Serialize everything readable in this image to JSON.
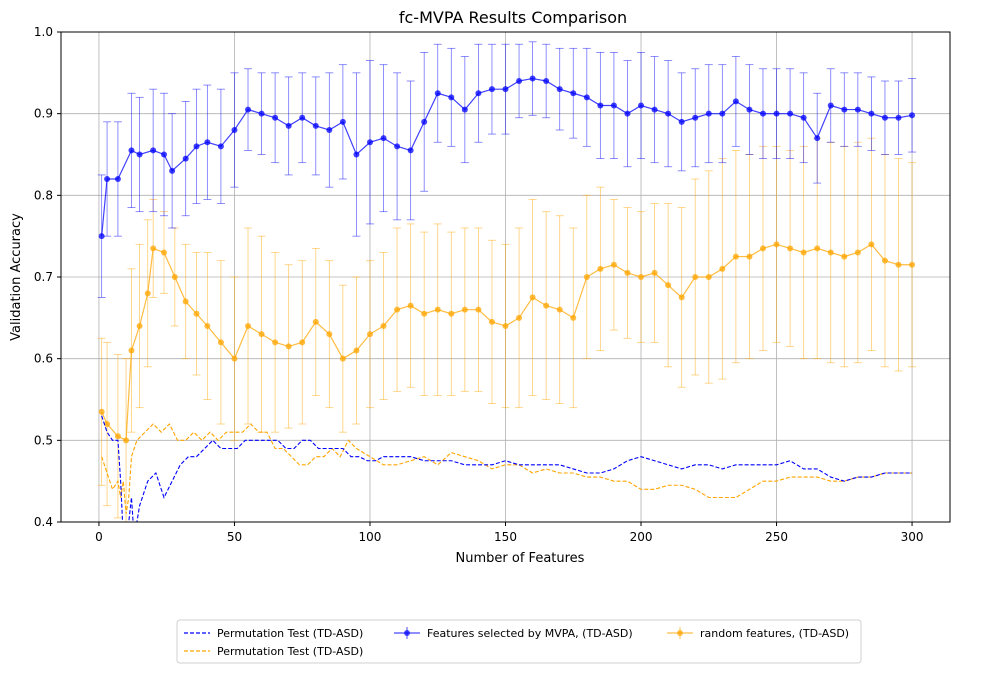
{
  "chart_data": {
    "type": "line",
    "title": "fc-MVPA Results Comparison",
    "xlabel": "Number of Features",
    "ylabel": "Validation Accuracy",
    "xlim": [
      -14,
      314
    ],
    "ylim": [
      0.4,
      1.0
    ],
    "xticks": [
      0,
      50,
      100,
      150,
      200,
      250,
      300
    ],
    "yticks": [
      0.4,
      0.5,
      0.6,
      0.7,
      0.8,
      0.9,
      1.0
    ],
    "ytick_labels": [
      "0.4",
      "0.5",
      "0.6",
      "0.7",
      "0.8",
      "0.9",
      "1.0"
    ],
    "grid": true,
    "legend_placement": "below-center",
    "colors": {
      "blue": "#0000ff",
      "orange": "#ffa500"
    },
    "series": [
      {
        "name": "Features selected by MVPA, (TD-ASD)",
        "kind": "errorbar",
        "color": "#0000ff",
        "x": [
          1,
          3,
          7,
          12,
          15,
          20,
          24,
          27,
          32,
          36,
          40,
          45,
          50,
          55,
          60,
          65,
          70,
          75,
          80,
          85,
          90,
          95,
          100,
          105,
          110,
          115,
          120,
          125,
          130,
          135,
          140,
          145,
          150,
          155,
          160,
          165,
          170,
          175,
          180,
          185,
          190,
          195,
          200,
          205,
          210,
          215,
          220,
          225,
          230,
          235,
          240,
          245,
          250,
          255,
          260,
          265,
          270,
          275,
          280,
          285,
          290,
          295,
          300
        ],
        "y": [
          0.75,
          0.82,
          0.82,
          0.855,
          0.85,
          0.855,
          0.85,
          0.83,
          0.845,
          0.86,
          0.865,
          0.86,
          0.88,
          0.905,
          0.9,
          0.895,
          0.885,
          0.895,
          0.885,
          0.88,
          0.89,
          0.85,
          0.865,
          0.87,
          0.86,
          0.855,
          0.89,
          0.925,
          0.92,
          0.905,
          0.925,
          0.93,
          0.93,
          0.94,
          0.943,
          0.94,
          0.93,
          0.925,
          0.92,
          0.91,
          0.91,
          0.9,
          0.91,
          0.905,
          0.9,
          0.89,
          0.895,
          0.9,
          0.9,
          0.915,
          0.905,
          0.9,
          0.9,
          0.9,
          0.895,
          0.87,
          0.91,
          0.905,
          0.905,
          0.9,
          0.895,
          0.895,
          0.898
        ],
        "err": [
          0.075,
          0.07,
          0.07,
          0.07,
          0.07,
          0.075,
          0.075,
          0.07,
          0.07,
          0.07,
          0.07,
          0.07,
          0.07,
          0.05,
          0.05,
          0.055,
          0.06,
          0.055,
          0.06,
          0.07,
          0.07,
          0.1,
          0.1,
          0.09,
          0.09,
          0.085,
          0.085,
          0.06,
          0.06,
          0.065,
          0.06,
          0.055,
          0.055,
          0.045,
          0.045,
          0.045,
          0.05,
          0.055,
          0.06,
          0.065,
          0.065,
          0.065,
          0.065,
          0.065,
          0.065,
          0.06,
          0.06,
          0.06,
          0.06,
          0.055,
          0.055,
          0.055,
          0.055,
          0.055,
          0.055,
          0.055,
          0.045,
          0.045,
          0.045,
          0.045,
          0.045,
          0.045,
          0.045
        ]
      },
      {
        "name": "random features, (TD-ASD)",
        "kind": "errorbar",
        "color": "#ffa500",
        "x": [
          1,
          3,
          7,
          10,
          12,
          15,
          18,
          20,
          24,
          28,
          32,
          36,
          40,
          45,
          50,
          55,
          60,
          65,
          70,
          75,
          80,
          85,
          90,
          95,
          100,
          105,
          110,
          115,
          120,
          125,
          130,
          135,
          140,
          145,
          150,
          155,
          160,
          165,
          170,
          175,
          180,
          185,
          190,
          195,
          200,
          205,
          210,
          215,
          220,
          225,
          230,
          235,
          240,
          245,
          250,
          255,
          260,
          265,
          270,
          275,
          280,
          285,
          290,
          295,
          300
        ],
        "y": [
          0.535,
          0.52,
          0.505,
          0.5,
          0.61,
          0.64,
          0.68,
          0.735,
          0.73,
          0.7,
          0.67,
          0.655,
          0.64,
          0.62,
          0.6,
          0.64,
          0.63,
          0.62,
          0.615,
          0.62,
          0.645,
          0.63,
          0.6,
          0.61,
          0.63,
          0.64,
          0.66,
          0.665,
          0.655,
          0.66,
          0.655,
          0.66,
          0.66,
          0.645,
          0.64,
          0.65,
          0.675,
          0.665,
          0.66,
          0.65,
          0.7,
          0.71,
          0.715,
          0.705,
          0.7,
          0.705,
          0.69,
          0.675,
          0.7,
          0.7,
          0.71,
          0.725,
          0.725,
          0.735,
          0.74,
          0.735,
          0.73,
          0.735,
          0.73,
          0.725,
          0.73,
          0.74,
          0.72,
          0.715,
          0.715
        ],
        "err": [
          0.09,
          0.1,
          0.1,
          0.1,
          0.1,
          0.1,
          0.09,
          0.06,
          0.05,
          0.06,
          0.07,
          0.075,
          0.09,
          0.1,
          0.1,
          0.12,
          0.12,
          0.11,
          0.1,
          0.1,
          0.09,
          0.09,
          0.09,
          0.09,
          0.09,
          0.09,
          0.1,
          0.1,
          0.1,
          0.105,
          0.1,
          0.1,
          0.1,
          0.1,
          0.1,
          0.11,
          0.12,
          0.115,
          0.115,
          0.11,
          0.1,
          0.1,
          0.08,
          0.08,
          0.08,
          0.085,
          0.1,
          0.11,
          0.12,
          0.13,
          0.135,
          0.13,
          0.125,
          0.125,
          0.12,
          0.12,
          0.13,
          0.135,
          0.135,
          0.135,
          0.135,
          0.13,
          0.13,
          0.13,
          0.125
        ]
      },
      {
        "name": "Permutation Test (TD-ASD)",
        "kind": "dashed",
        "color": "#0000ff",
        "x": [
          1,
          3,
          5,
          7,
          8,
          9,
          10,
          11,
          12,
          13,
          15,
          18,
          21,
          24,
          27,
          30,
          33,
          36,
          39,
          42,
          45,
          48,
          51,
          54,
          57,
          60,
          63,
          66,
          69,
          72,
          75,
          78,
          81,
          84,
          87,
          90,
          93,
          96,
          99,
          102,
          105,
          110,
          115,
          120,
          125,
          130,
          135,
          140,
          145,
          150,
          155,
          160,
          165,
          170,
          175,
          180,
          185,
          190,
          195,
          200,
          205,
          210,
          215,
          220,
          225,
          230,
          235,
          240,
          245,
          250,
          255,
          260,
          265,
          270,
          275,
          280,
          285,
          290,
          295,
          300
        ],
        "y": [
          0.53,
          0.51,
          0.5,
          0.5,
          0.45,
          0.38,
          0.35,
          0.4,
          0.43,
          0.38,
          0.42,
          0.45,
          0.46,
          0.43,
          0.45,
          0.47,
          0.48,
          0.48,
          0.49,
          0.5,
          0.49,
          0.49,
          0.49,
          0.5,
          0.5,
          0.5,
          0.5,
          0.5,
          0.49,
          0.49,
          0.5,
          0.5,
          0.49,
          0.49,
          0.49,
          0.49,
          0.48,
          0.48,
          0.475,
          0.475,
          0.48,
          0.48,
          0.48,
          0.475,
          0.475,
          0.475,
          0.47,
          0.47,
          0.47,
          0.475,
          0.47,
          0.47,
          0.47,
          0.47,
          0.465,
          0.46,
          0.46,
          0.465,
          0.475,
          0.48,
          0.475,
          0.47,
          0.465,
          0.47,
          0.47,
          0.465,
          0.47,
          0.47,
          0.47,
          0.47,
          0.475,
          0.465,
          0.465,
          0.455,
          0.45,
          0.455,
          0.455,
          0.46,
          0.46,
          0.46
        ]
      },
      {
        "name": "Permutation Test (TD-ASD)",
        "kind": "dashed",
        "color": "#ffa500",
        "x": [
          1,
          3,
          5,
          7,
          8,
          9,
          10,
          11,
          12,
          14,
          17,
          20,
          23,
          26,
          29,
          32,
          35,
          38,
          41,
          44,
          47,
          50,
          53,
          56,
          59,
          62,
          65,
          68,
          71,
          74,
          77,
          80,
          83,
          86,
          89,
          92,
          95,
          100,
          105,
          110,
          115,
          120,
          125,
          130,
          135,
          140,
          145,
          150,
          155,
          160,
          165,
          170,
          175,
          180,
          185,
          190,
          195,
          200,
          205,
          210,
          215,
          220,
          225,
          230,
          235,
          240,
          245,
          250,
          255,
          260,
          265,
          270,
          275,
          280,
          285,
          290,
          295,
          300
        ],
        "y": [
          0.48,
          0.46,
          0.44,
          0.45,
          0.43,
          0.45,
          0.41,
          0.43,
          0.48,
          0.5,
          0.51,
          0.52,
          0.51,
          0.52,
          0.5,
          0.5,
          0.51,
          0.5,
          0.51,
          0.5,
          0.51,
          0.51,
          0.51,
          0.52,
          0.51,
          0.51,
          0.49,
          0.49,
          0.48,
          0.47,
          0.47,
          0.48,
          0.48,
          0.49,
          0.48,
          0.5,
          0.49,
          0.48,
          0.47,
          0.47,
          0.475,
          0.48,
          0.47,
          0.485,
          0.48,
          0.475,
          0.465,
          0.47,
          0.47,
          0.46,
          0.465,
          0.46,
          0.46,
          0.455,
          0.455,
          0.45,
          0.45,
          0.44,
          0.44,
          0.445,
          0.445,
          0.44,
          0.43,
          0.43,
          0.43,
          0.44,
          0.45,
          0.45,
          0.455,
          0.455,
          0.455,
          0.45,
          0.45,
          0.455,
          0.455,
          0.46,
          0.46,
          0.46
        ]
      }
    ],
    "legend": [
      {
        "label": "Permutation Test (TD-ASD)",
        "style": "dashed",
        "color": "#0000ff"
      },
      {
        "label": "Permutation Test (TD-ASD)",
        "style": "dashed",
        "color": "#ffa500"
      },
      {
        "label": "Features selected by MVPA, (TD-ASD)",
        "style": "errorbar",
        "color": "#0000ff"
      },
      {
        "label": "random features, (TD-ASD)",
        "style": "errorbar",
        "color": "#ffa500"
      }
    ]
  }
}
